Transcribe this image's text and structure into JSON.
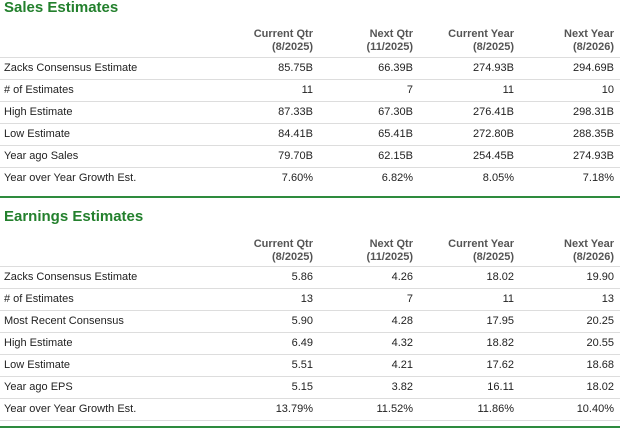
{
  "sales": {
    "title": "Sales Estimates",
    "columns": [
      {
        "line1": "Current Qtr",
        "line2": "(8/2025)"
      },
      {
        "line1": "Next Qtr",
        "line2": "(11/2025)"
      },
      {
        "line1": "Current Year",
        "line2": "(8/2025)"
      },
      {
        "line1": "Next Year",
        "line2": "(8/2026)"
      }
    ],
    "rows": [
      {
        "label": "Zacks Consensus Estimate",
        "values": [
          "85.75B",
          "66.39B",
          "274.93B",
          "294.69B"
        ]
      },
      {
        "label": "# of Estimates",
        "values": [
          "11",
          "7",
          "11",
          "10"
        ]
      },
      {
        "label": "High Estimate",
        "values": [
          "87.33B",
          "67.30B",
          "276.41B",
          "298.31B"
        ]
      },
      {
        "label": "Low Estimate",
        "values": [
          "84.41B",
          "65.41B",
          "272.80B",
          "288.35B"
        ]
      },
      {
        "label": "Year ago Sales",
        "values": [
          "79.70B",
          "62.15B",
          "254.45B",
          "274.93B"
        ]
      },
      {
        "label": "Year over Year Growth Est.",
        "values": [
          "7.60%",
          "6.82%",
          "8.05%",
          "7.18%"
        ]
      }
    ]
  },
  "earnings": {
    "title": "Earnings Estimates",
    "columns": [
      {
        "line1": "Current Qtr",
        "line2": "(8/2025)"
      },
      {
        "line1": "Next Qtr",
        "line2": "(11/2025)"
      },
      {
        "line1": "Current Year",
        "line2": "(8/2025)"
      },
      {
        "line1": "Next Year",
        "line2": "(8/2026)"
      }
    ],
    "rows": [
      {
        "label": "Zacks Consensus Estimate",
        "values": [
          "5.86",
          "4.26",
          "18.02",
          "19.90"
        ]
      },
      {
        "label": "# of Estimates",
        "values": [
          "13",
          "7",
          "11",
          "13"
        ]
      },
      {
        "label": "Most Recent Consensus",
        "values": [
          "5.90",
          "4.28",
          "17.95",
          "20.25"
        ]
      },
      {
        "label": "High Estimate",
        "values": [
          "6.49",
          "4.32",
          "18.82",
          "20.55"
        ]
      },
      {
        "label": "Low Estimate",
        "values": [
          "5.51",
          "4.21",
          "17.62",
          "18.68"
        ]
      },
      {
        "label": "Year ago EPS",
        "values": [
          "5.15",
          "3.82",
          "16.11",
          "18.02"
        ]
      },
      {
        "label": "Year over Year Growth Est.",
        "values": [
          "13.79%",
          "11.52%",
          "11.86%",
          "10.40%"
        ]
      }
    ]
  }
}
